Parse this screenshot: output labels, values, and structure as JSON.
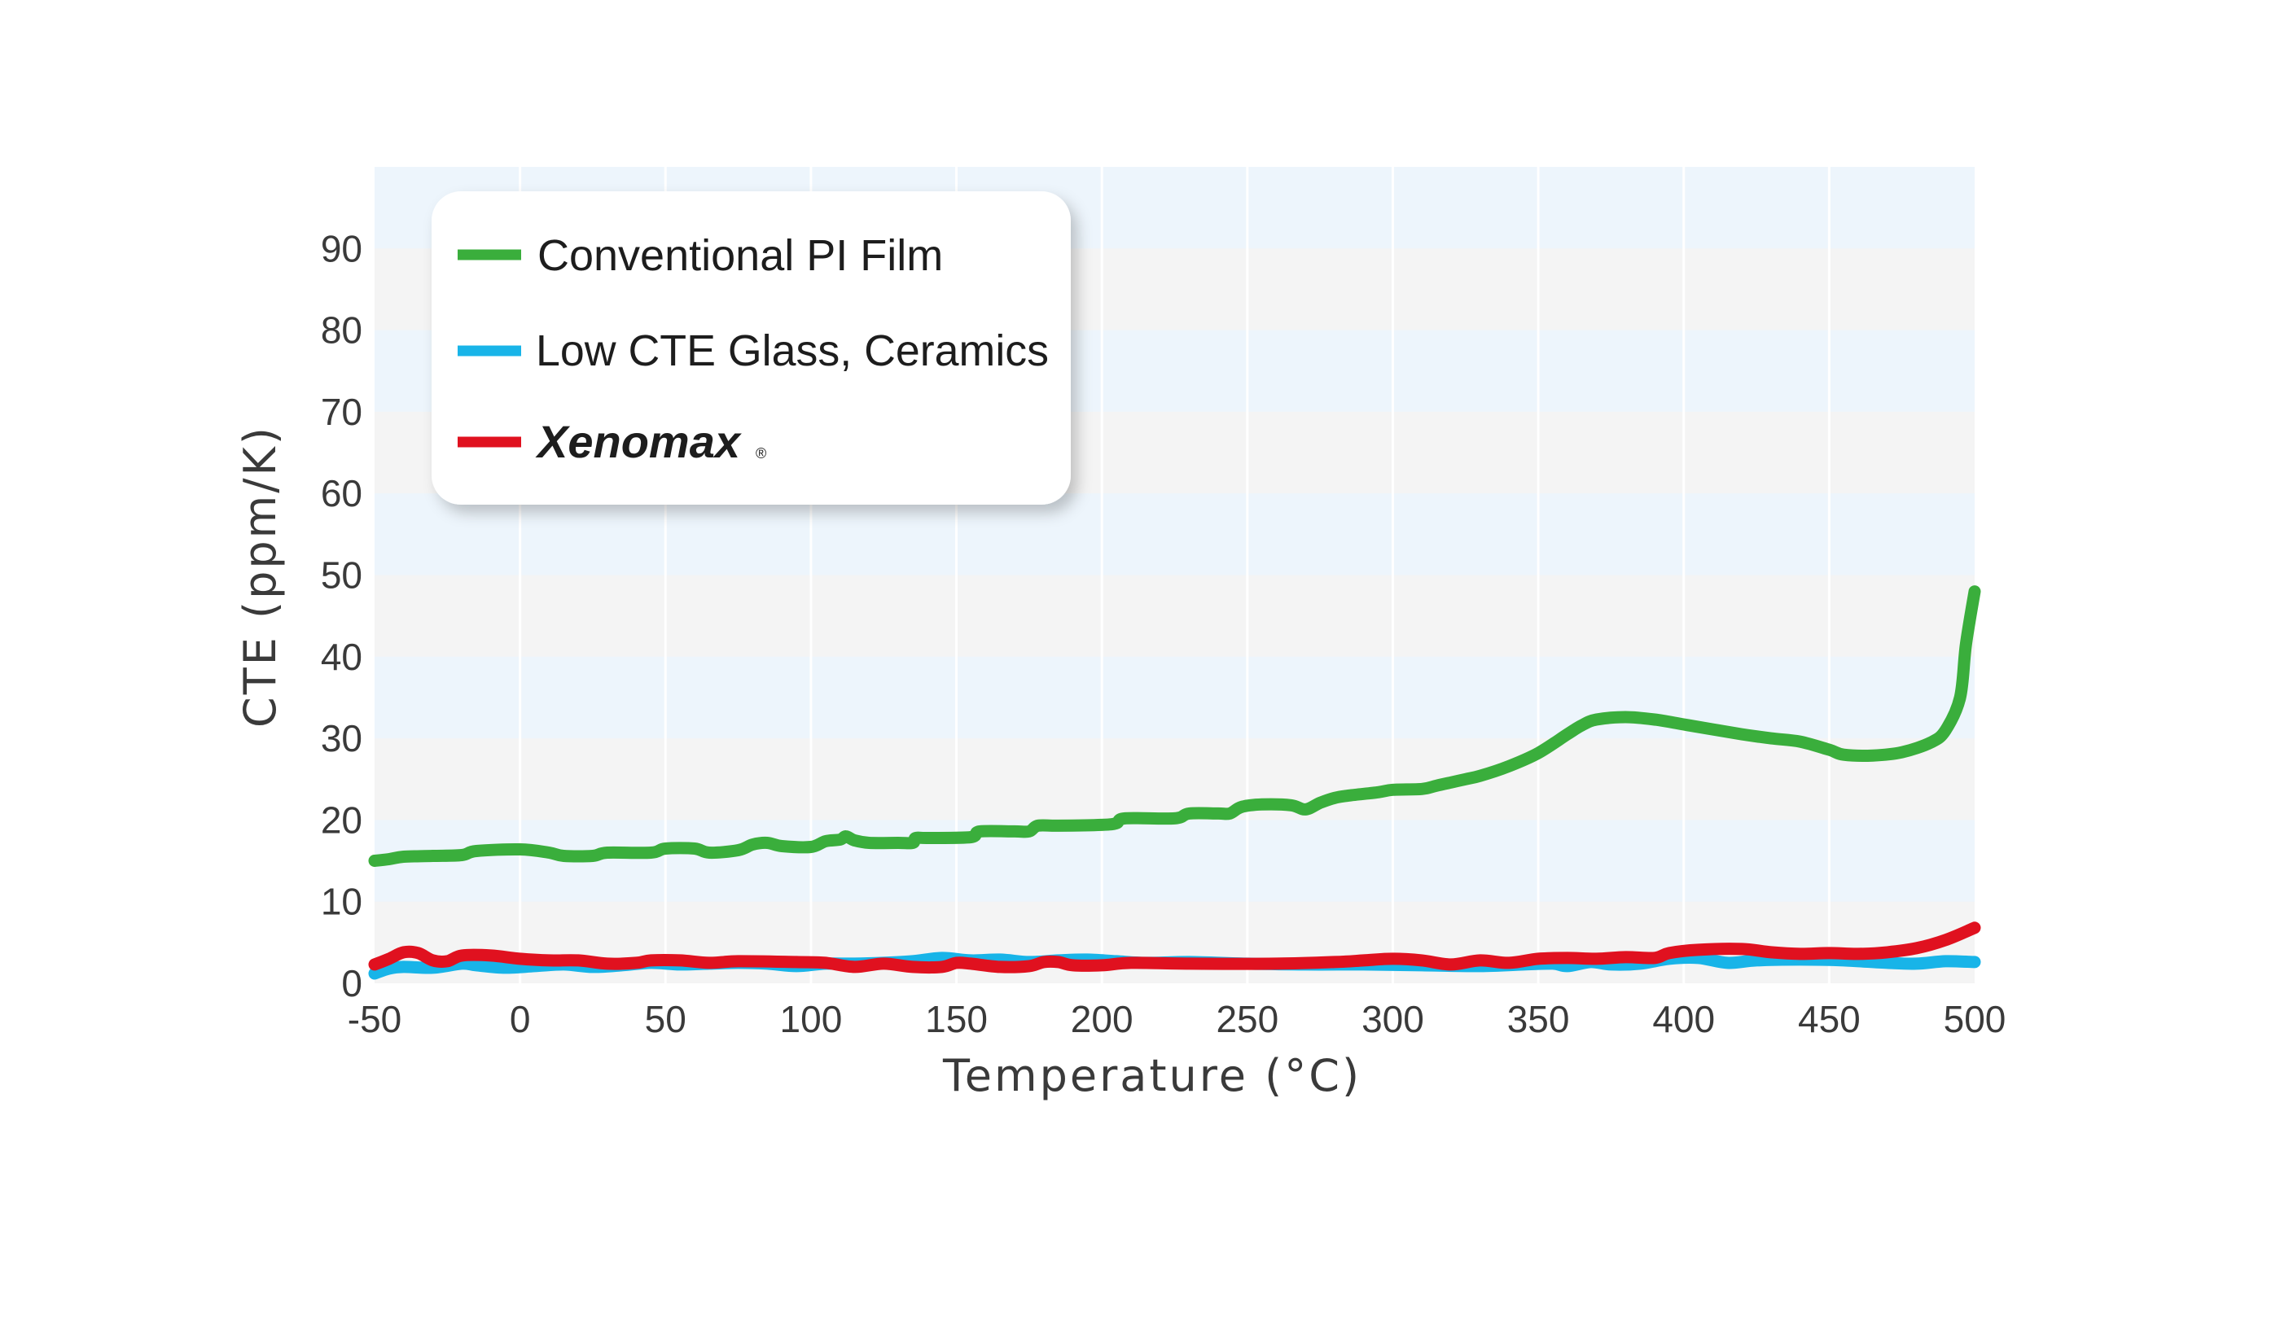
{
  "chart_data": {
    "type": "line",
    "title": "",
    "xlabel": "Temperature (°C)",
    "ylabel": "CTE (ppm/K)",
    "xlim": [
      -50,
      500
    ],
    "ylim": [
      0,
      100
    ],
    "x_ticks": [
      "-50",
      "0",
      "50",
      "100",
      "150",
      "200",
      "250",
      "300",
      "350",
      "400",
      "450",
      "500"
    ],
    "y_ticks": [
      "0",
      "10",
      "20",
      "30",
      "40",
      "50",
      "60",
      "70",
      "80",
      "90"
    ],
    "grid": "vertical lines, alternating horizontal bands",
    "legend_position": "top-left",
    "series": [
      {
        "name": "Conventional PI Film",
        "color": "#3aae3c",
        "points": [
          [
            -50,
            15
          ],
          [
            -45,
            15.2
          ],
          [
            -40,
            15.5
          ],
          [
            -30,
            15.6
          ],
          [
            -20,
            15.7
          ],
          [
            -15,
            16.2
          ],
          [
            0,
            16.4
          ],
          [
            10,
            16
          ],
          [
            15,
            15.6
          ],
          [
            25,
            15.6
          ],
          [
            30,
            16
          ],
          [
            45,
            16
          ],
          [
            50,
            16.5
          ],
          [
            60,
            16.5
          ],
          [
            65,
            16
          ],
          [
            75,
            16.3
          ],
          [
            80,
            17
          ],
          [
            85,
            17.2
          ],
          [
            90,
            16.8
          ],
          [
            100,
            16.7
          ],
          [
            105,
            17.4
          ],
          [
            110,
            17.6
          ],
          [
            112,
            18
          ],
          [
            115,
            17.5
          ],
          [
            120,
            17.2
          ],
          [
            130,
            17.2
          ],
          [
            135,
            17.2
          ],
          [
            136,
            17.8
          ],
          [
            140,
            17.8
          ],
          [
            155,
            17.9
          ],
          [
            158,
            18.6
          ],
          [
            170,
            18.6
          ],
          [
            175,
            18.6
          ],
          [
            178,
            19.3
          ],
          [
            185,
            19.3
          ],
          [
            200,
            19.4
          ],
          [
            205,
            19.6
          ],
          [
            208,
            20.2
          ],
          [
            225,
            20.2
          ],
          [
            230,
            20.8
          ],
          [
            240,
            20.8
          ],
          [
            244,
            20.8
          ],
          [
            248,
            21.6
          ],
          [
            255,
            21.9
          ],
          [
            265,
            21.8
          ],
          [
            270,
            21.3
          ],
          [
            275,
            22.1
          ],
          [
            280,
            22.7
          ],
          [
            285,
            23
          ],
          [
            295,
            23.4
          ],
          [
            300,
            23.7
          ],
          [
            310,
            23.8
          ],
          [
            315,
            24.2
          ],
          [
            320,
            24.6
          ],
          [
            325,
            25
          ],
          [
            330,
            25.4
          ],
          [
            340,
            26.6
          ],
          [
            350,
            28.2
          ],
          [
            360,
            30.5
          ],
          [
            365,
            31.6
          ],
          [
            370,
            32.3
          ],
          [
            380,
            32.6
          ],
          [
            390,
            32.3
          ],
          [
            400,
            31.7
          ],
          [
            410,
            31.1
          ],
          [
            420,
            30.5
          ],
          [
            430,
            30
          ],
          [
            440,
            29.6
          ],
          [
            450,
            28.6
          ],
          [
            455,
            28
          ],
          [
            465,
            27.9
          ],
          [
            475,
            28.3
          ],
          [
            485,
            29.5
          ],
          [
            490,
            31
          ],
          [
            495,
            35
          ],
          [
            497,
            41.5
          ],
          [
            500,
            48
          ]
        ]
      },
      {
        "name": "Low CTE Glass, Ceramics",
        "color": "#18b4e8",
        "points": [
          [
            -50,
            1.2
          ],
          [
            -45,
            1.8
          ],
          [
            -40,
            2
          ],
          [
            -30,
            1.9
          ],
          [
            -20,
            2.4
          ],
          [
            -15,
            2.2
          ],
          [
            -5,
            1.9
          ],
          [
            5,
            2.1
          ],
          [
            15,
            2.3
          ],
          [
            25,
            2
          ],
          [
            35,
            2.2
          ],
          [
            45,
            2.5
          ],
          [
            55,
            2.3
          ],
          [
            65,
            2.4
          ],
          [
            75,
            2.5
          ],
          [
            85,
            2.4
          ],
          [
            95,
            2.1
          ],
          [
            105,
            2.4
          ],
          [
            115,
            2.4
          ],
          [
            125,
            2.5
          ],
          [
            135,
            2.7
          ],
          [
            145,
            3.1
          ],
          [
            155,
            2.8
          ],
          [
            165,
            2.9
          ],
          [
            175,
            2.6
          ],
          [
            185,
            2.8
          ],
          [
            195,
            2.9
          ],
          [
            205,
            2.7
          ],
          [
            215,
            2.5
          ],
          [
            230,
            2.6
          ],
          [
            250,
            2.4
          ],
          [
            270,
            2.3
          ],
          [
            290,
            2.3
          ],
          [
            310,
            2.2
          ],
          [
            330,
            2.1
          ],
          [
            345,
            2.3
          ],
          [
            355,
            2.4
          ],
          [
            360,
            2.1
          ],
          [
            368,
            2.6
          ],
          [
            375,
            2.3
          ],
          [
            385,
            2.4
          ],
          [
            395,
            3
          ],
          [
            405,
            3.1
          ],
          [
            415,
            2.5
          ],
          [
            425,
            2.8
          ],
          [
            440,
            2.9
          ],
          [
            455,
            2.8
          ],
          [
            470,
            2.5
          ],
          [
            480,
            2.4
          ],
          [
            490,
            2.7
          ],
          [
            500,
            2.6
          ]
        ]
      },
      {
        "name": "Xenomax",
        "name_suffix": "®",
        "color": "#e0111f",
        "points": [
          [
            -50,
            2.3
          ],
          [
            -45,
            3
          ],
          [
            -40,
            3.8
          ],
          [
            -35,
            3.7
          ],
          [
            -30,
            2.8
          ],
          [
            -25,
            2.7
          ],
          [
            -20,
            3.4
          ],
          [
            -10,
            3.4
          ],
          [
            0,
            3
          ],
          [
            10,
            2.8
          ],
          [
            20,
            2.8
          ],
          [
            30,
            2.4
          ],
          [
            40,
            2.5
          ],
          [
            45,
            2.8
          ],
          [
            55,
            2.8
          ],
          [
            65,
            2.5
          ],
          [
            75,
            2.7
          ],
          [
            95,
            2.6
          ],
          [
            105,
            2.5
          ],
          [
            115,
            2
          ],
          [
            125,
            2.4
          ],
          [
            135,
            2
          ],
          [
            145,
            2
          ],
          [
            150,
            2.5
          ],
          [
            155,
            2.4
          ],
          [
            165,
            2
          ],
          [
            175,
            2.1
          ],
          [
            180,
            2.6
          ],
          [
            185,
            2.6
          ],
          [
            190,
            2.2
          ],
          [
            200,
            2.2
          ],
          [
            210,
            2.5
          ],
          [
            230,
            2.4
          ],
          [
            260,
            2.4
          ],
          [
            280,
            2.6
          ],
          [
            290,
            2.8
          ],
          [
            300,
            3
          ],
          [
            310,
            2.8
          ],
          [
            320,
            2.3
          ],
          [
            330,
            2.8
          ],
          [
            340,
            2.5
          ],
          [
            350,
            3
          ],
          [
            360,
            3.1
          ],
          [
            370,
            3
          ],
          [
            380,
            3.2
          ],
          [
            390,
            3.1
          ],
          [
            395,
            3.7
          ],
          [
            405,
            4.1
          ],
          [
            420,
            4.2
          ],
          [
            430,
            3.8
          ],
          [
            440,
            3.6
          ],
          [
            450,
            3.7
          ],
          [
            460,
            3.6
          ],
          [
            470,
            3.8
          ],
          [
            480,
            4.3
          ],
          [
            490,
            5.3
          ],
          [
            500,
            6.8
          ]
        ]
      }
    ]
  }
}
